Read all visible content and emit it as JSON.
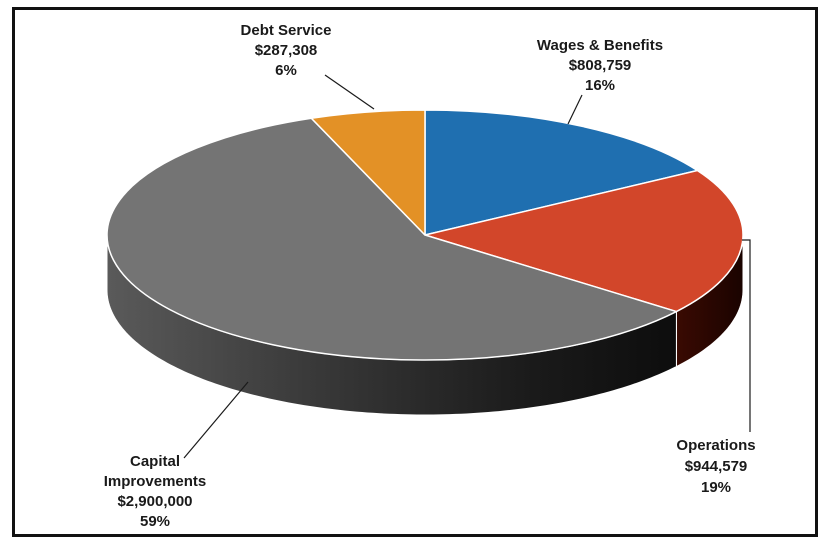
{
  "chart_data": {
    "type": "pie",
    "title": "",
    "style": "3d",
    "slices": [
      {
        "name": "Wages & Benefits",
        "amount": "$808,759",
        "percent": "16%",
        "value": 808759,
        "color": "#1f6fb0"
      },
      {
        "name": "Operations",
        "amount": "$944,579",
        "percent": "19%",
        "value": 944579,
        "color": "#d2462a"
      },
      {
        "name": "Capital Improvements",
        "amount": "$2,900,000",
        "percent": "59%",
        "value": 2900000,
        "color": "#747474"
      },
      {
        "name": "Debt Service",
        "amount": "$287,308",
        "percent": "6%",
        "value": 287308,
        "color": "#e39126"
      }
    ]
  }
}
